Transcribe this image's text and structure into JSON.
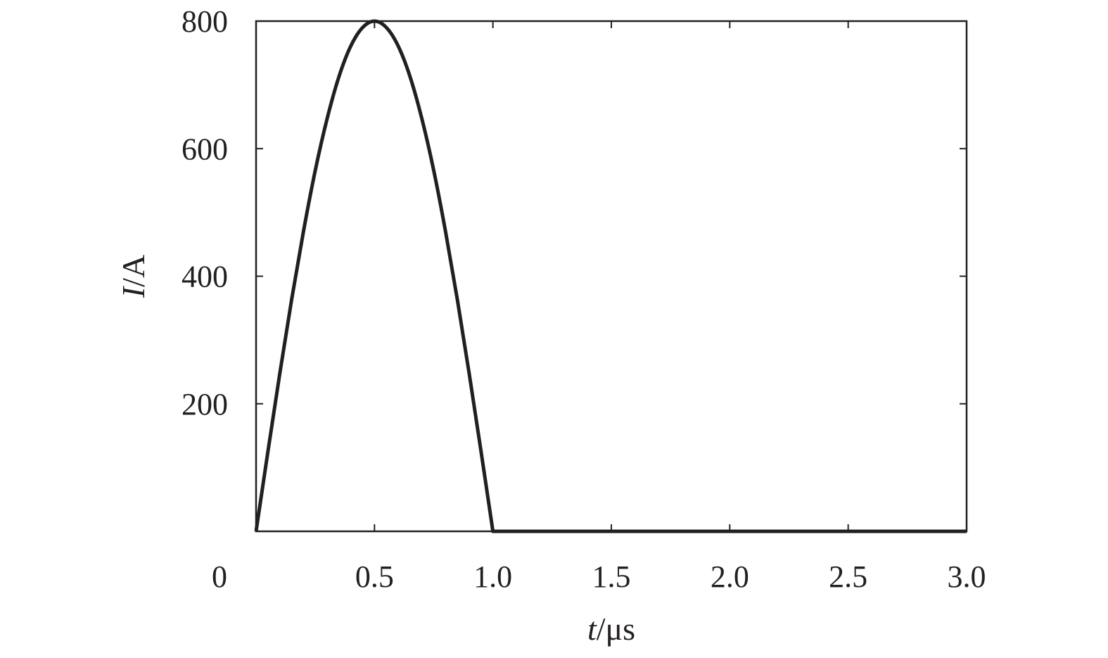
{
  "chart_data": {
    "type": "line",
    "title": "",
    "xlabel": {
      "var": "t",
      "unit": "/μs"
    },
    "ylabel": {
      "var": "I",
      "unit": "/A"
    },
    "xlim": [
      0,
      3.0
    ],
    "ylim": [
      0,
      800
    ],
    "x_ticks": [
      0.5,
      1.0,
      1.5,
      2.0,
      2.5,
      3.0
    ],
    "x_tick_labels": [
      "0.5",
      "1.0",
      "1.5",
      "2.0",
      "2.5",
      "3.0"
    ],
    "y_ticks": [
      200,
      400,
      600,
      800
    ],
    "y_tick_labels": [
      "200",
      "400",
      "600",
      "800"
    ],
    "origin_label": "0",
    "grid": false,
    "legend": "none",
    "line_color": "#231f20",
    "series": [
      {
        "x": [
          0,
          0.05,
          0.1,
          0.15,
          0.2,
          0.25,
          0.3,
          0.35,
          0.4,
          0.45,
          0.5,
          0.55,
          0.6,
          0.65,
          0.7,
          0.75,
          0.8,
          0.85,
          0.9,
          0.95,
          1.0,
          1.5,
          2.0,
          2.5,
          3.0
        ],
        "y": [
          0,
          125,
          247,
          363,
          470,
          566,
          647,
          713,
          761,
          790,
          800,
          790,
          761,
          713,
          647,
          566,
          470,
          363,
          247,
          125,
          0,
          0,
          0,
          0,
          0
        ]
      }
    ]
  }
}
